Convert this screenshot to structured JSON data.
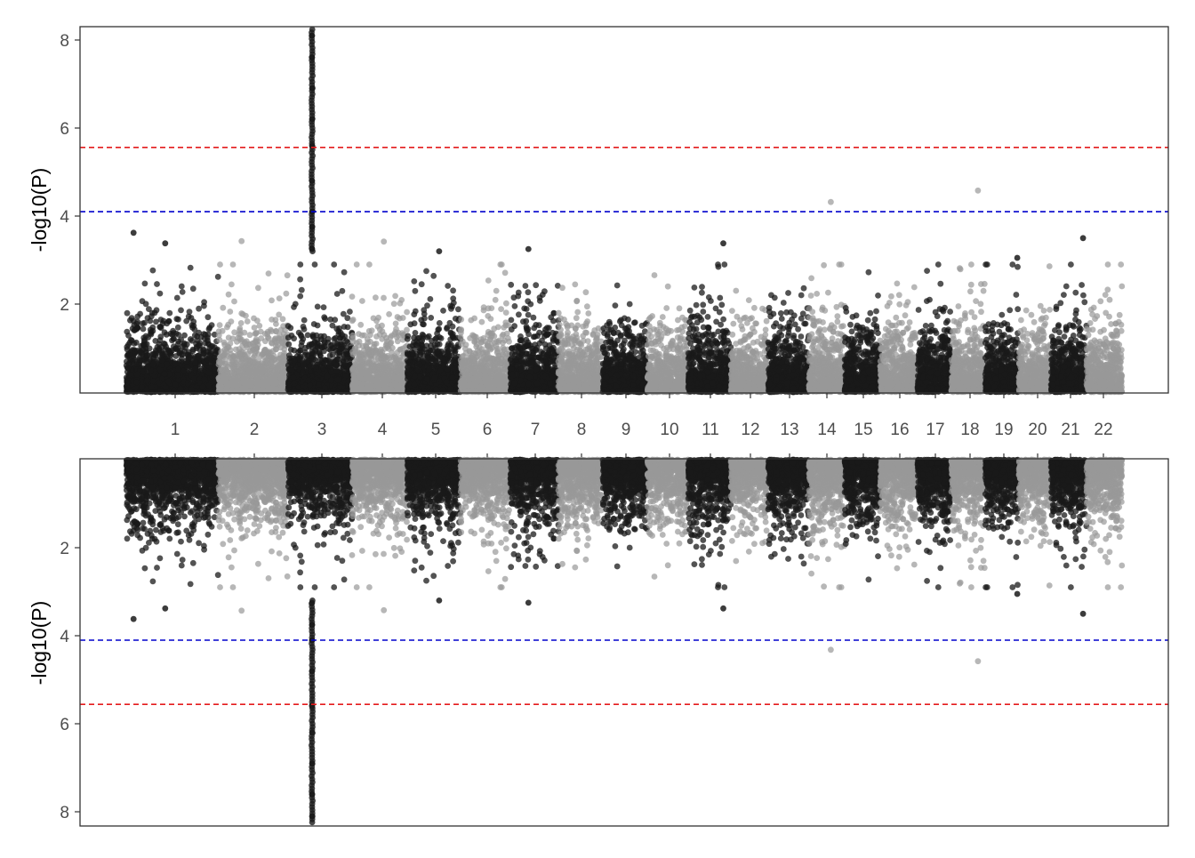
{
  "chart_data": [
    {
      "type": "scatter",
      "panel": "top",
      "ylabel": "-log10(P)",
      "xlabel": "",
      "y_axis_direction": "up",
      "ylim": [
        0,
        8.3
      ],
      "yticks": [
        2,
        4,
        6,
        8
      ],
      "xlim": [
        0,
        22.5
      ],
      "grid": false,
      "legend": "none",
      "colors": {
        "odd_chromosomes": "#1a1a1a",
        "even_chromosomes": "#999999"
      },
      "thresholds": [
        {
          "value": 5.56,
          "color": "#e41a1c",
          "style": "dashed"
        },
        {
          "value": 4.1,
          "color": "#0000cc",
          "style": "dashed"
        }
      ]
    },
    {
      "type": "scatter",
      "panel": "bottom",
      "ylabel": "-log10(P)",
      "xlabel": "",
      "y_axis_direction": "down",
      "ylim": [
        0,
        8.3
      ],
      "yticks": [
        2,
        4,
        6,
        8
      ],
      "xlim": [
        0,
        22.5
      ],
      "grid": false,
      "legend": "none",
      "colors": {
        "odd_chromosomes": "#1a1a1a",
        "even_chromosomes": "#999999"
      },
      "thresholds": [
        {
          "value": 5.56,
          "color": "#e41a1c",
          "style": "dashed"
        },
        {
          "value": 4.1,
          "color": "#0000cc",
          "style": "dashed"
        }
      ]
    }
  ],
  "chromosomes": [
    {
      "label": "1",
      "start": 0.0,
      "end": 1.9
    },
    {
      "label": "2",
      "start": 1.9,
      "end": 3.42
    },
    {
      "label": "3",
      "start": 3.42,
      "end": 4.72
    },
    {
      "label": "4",
      "start": 4.72,
      "end": 5.9
    },
    {
      "label": "5",
      "start": 5.9,
      "end": 7.07
    },
    {
      "label": "6",
      "start": 7.07,
      "end": 8.04
    },
    {
      "label": "7",
      "start": 8.04,
      "end": 9.0
    },
    {
      "label": "8",
      "start": 9.0,
      "end": 9.84
    },
    {
      "label": "9",
      "start": 9.84,
      "end": 10.7
    },
    {
      "label": "10",
      "start": 10.7,
      "end": 11.5
    },
    {
      "label": "11",
      "start": 11.5,
      "end": 12.35
    },
    {
      "label": "12",
      "start": 12.35,
      "end": 13.15
    },
    {
      "label": "13",
      "start": 13.15,
      "end": 13.93
    },
    {
      "label": "14",
      "start": 13.93,
      "end": 14.7
    },
    {
      "label": "15",
      "start": 14.7,
      "end": 15.5
    },
    {
      "label": "16",
      "start": 15.5,
      "end": 16.24
    },
    {
      "label": "17",
      "start": 16.24,
      "end": 17.0
    },
    {
      "label": "18",
      "start": 17.0,
      "end": 17.7
    },
    {
      "label": "19",
      "start": 17.7,
      "end": 18.4
    },
    {
      "label": "20",
      "start": 18.4,
      "end": 19.05
    },
    {
      "label": "21",
      "start": 19.05,
      "end": 19.77
    },
    {
      "label": "22",
      "start": 19.77,
      "end": 20.5
    }
  ],
  "notable_points": [
    {
      "chr": "1",
      "x": 0.15,
      "y": 3.62
    },
    {
      "chr": "1",
      "x": 0.8,
      "y": 3.38
    },
    {
      "chr": "2",
      "x": 2.4,
      "y": 3.43
    },
    {
      "chr": "3",
      "x": 3.88,
      "y": 8.1
    },
    {
      "chr": "3",
      "x": 3.88,
      "y": 7.6
    },
    {
      "chr": "3",
      "x": 3.88,
      "y": 6.9
    },
    {
      "chr": "3",
      "x": 3.88,
      "y": 6.2
    },
    {
      "chr": "3",
      "x": 3.88,
      "y": 5.6
    },
    {
      "chr": "3",
      "x": 3.88,
      "y": 4.8
    },
    {
      "chr": "3",
      "x": 3.88,
      "y": 4.1
    },
    {
      "chr": "3",
      "x": 3.88,
      "y": 3.75
    },
    {
      "chr": "3",
      "x": 3.88,
      "y": 3.25
    },
    {
      "chr": "4",
      "x": 5.4,
      "y": 3.42
    },
    {
      "chr": "5",
      "x": 6.6,
      "y": 3.2
    },
    {
      "chr": "7",
      "x": 8.4,
      "y": 3.25
    },
    {
      "chr": "11",
      "x": 12.2,
      "y": 3.38
    },
    {
      "chr": "14",
      "x": 14.4,
      "y": 4.32
    },
    {
      "chr": "18",
      "x": 17.55,
      "y": 4.58
    },
    {
      "chr": "19",
      "x": 18.5,
      "y": 3.05
    },
    {
      "chr": "21",
      "x": 19.7,
      "y": 3.5
    }
  ]
}
